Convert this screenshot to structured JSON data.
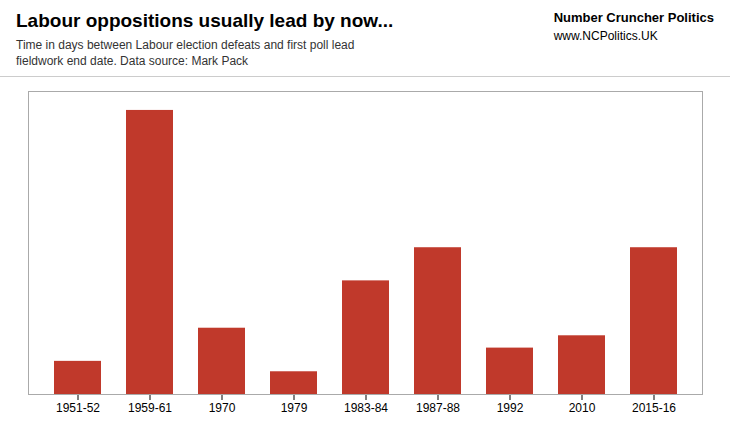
{
  "chart_data": {
    "type": "bar",
    "title": "Labour oppositions usually lead by now...",
    "subtitle": [
      "Time in days between Labour election defeats and first poll lead",
      "fieldwork end date. Data source: Mark Pack"
    ],
    "annotations": [
      "Number Cruncher Politics",
      "www.NCPolitics.UK"
    ],
    "categories": [
      "1951-52",
      "1959-61",
      "1970",
      "1979",
      "1983-84",
      "1987-88",
      "1992",
      "2010",
      "2015-16"
    ],
    "values": [
      350,
      3000,
      700,
      240,
      1200,
      1550,
      490,
      620,
      1550
    ],
    "color": "#C0392B",
    "ylim": [
      0,
      3200
    ],
    "grid": false,
    "tick_labels": "x"
  }
}
